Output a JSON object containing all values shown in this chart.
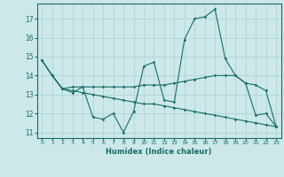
{
  "xlabel": "Humidex (Indice chaleur)",
  "background_color": "#cce8e8",
  "grid_color": "#b0d4d4",
  "line_color": "#1a6b6b",
  "x": [
    0,
    1,
    2,
    3,
    4,
    5,
    6,
    7,
    8,
    9,
    10,
    11,
    12,
    13,
    14,
    15,
    16,
    17,
    18,
    19,
    20,
    21,
    22,
    23
  ],
  "line1": [
    14.8,
    14.0,
    13.3,
    13.1,
    13.4,
    11.8,
    11.7,
    12.0,
    11.0,
    12.1,
    14.5,
    14.7,
    12.7,
    12.6,
    15.9,
    17.0,
    17.1,
    17.5,
    14.9,
    14.0,
    13.6,
    11.9,
    12.0,
    11.3
  ],
  "line2": [
    14.8,
    14.0,
    13.3,
    13.4,
    13.4,
    13.4,
    13.4,
    13.4,
    13.4,
    13.4,
    13.5,
    13.5,
    13.5,
    13.6,
    13.7,
    13.8,
    13.9,
    14.0,
    14.0,
    14.0,
    13.6,
    13.5,
    13.2,
    11.3
  ],
  "line3": [
    14.8,
    14.0,
    13.3,
    13.2,
    13.1,
    13.0,
    12.9,
    12.8,
    12.7,
    12.6,
    12.5,
    12.5,
    12.4,
    12.3,
    12.2,
    12.1,
    12.0,
    11.9,
    11.8,
    11.7,
    11.6,
    11.5,
    11.4,
    11.3
  ],
  "ylim": [
    10.7,
    17.8
  ],
  "yticks": [
    11,
    12,
    13,
    14,
    15,
    16,
    17
  ],
  "xlim": [
    -0.5,
    23.5
  ]
}
